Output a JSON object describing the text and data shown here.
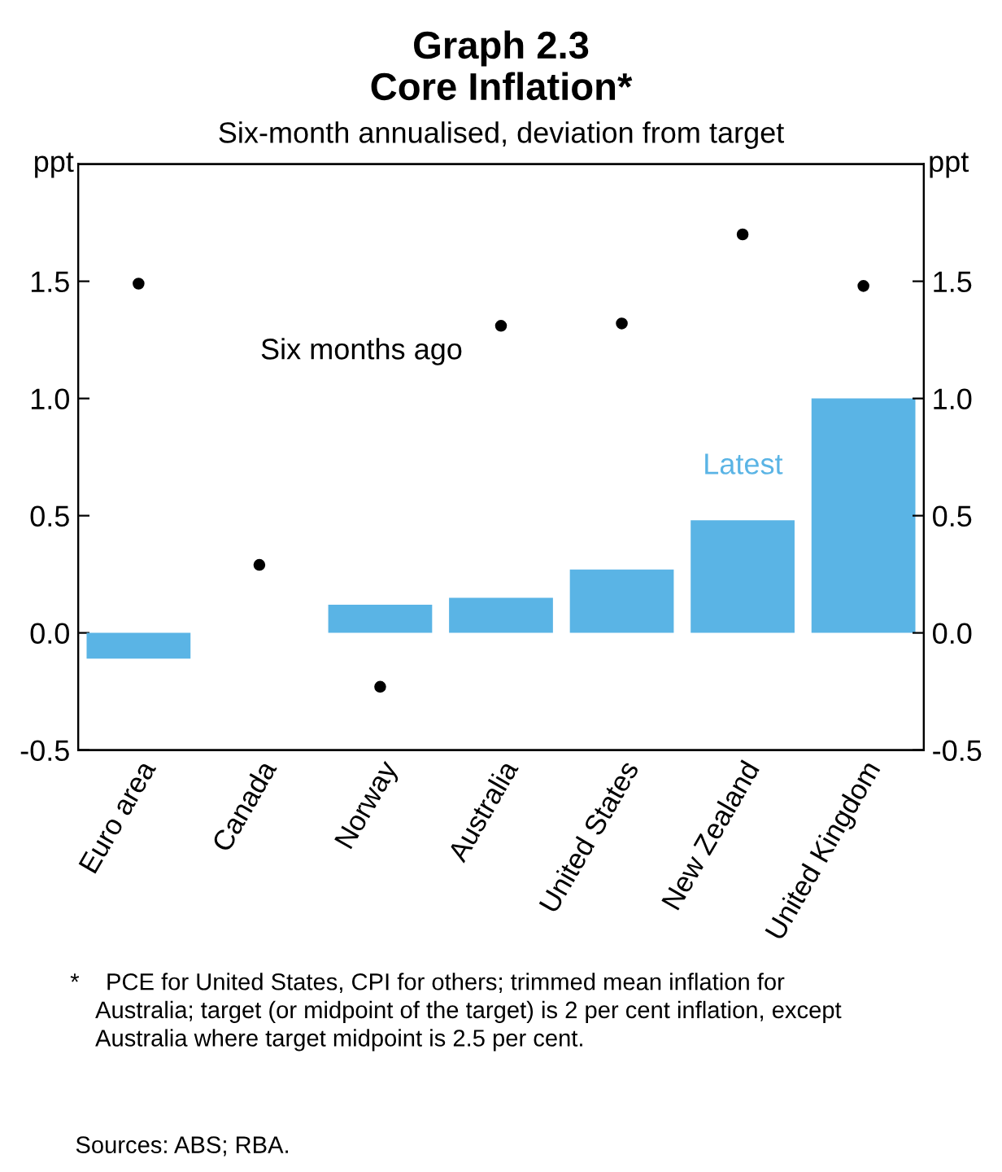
{
  "chart_data": {
    "type": "bar",
    "title": "Graph 2.3\nCore Inflation*",
    "subtitle": "Six-month annualised, deviation from target",
    "ylabel": "ppt",
    "y2label": "ppt",
    "categories": [
      "Euro area",
      "Canada",
      "Norway",
      "Australia",
      "United States",
      "New Zealand",
      "United Kingdom"
    ],
    "series": [
      {
        "color": "#5ab4e5",
        "values": [
          -0.11,
          0.0,
          0.12,
          0.15,
          0.27,
          0.48,
          1.0
        ]
      },
      {
        "type": "scatter",
        "color": "#000000",
        "marker": "circle",
        "values": [
          1.49,
          0.29,
          -0.23,
          1.31,
          1.32,
          1.7,
          1.48
        ]
      }
    ],
    "ylim": [
      -0.5,
      2.0
    ],
    "yticks": [
      {
        "value": -0.5,
        "label": "-0.5"
      },
      {
        "value": 0,
        "label": "0.0"
      },
      {
        "value": 0.5,
        "label": "0.5"
      },
      {
        "value": 1,
        "label": "1.0"
      },
      {
        "value": 1.5,
        "label": "1.5"
      }
    ],
    "y2lim": [
      -0.5,
      2.0
    ],
    "y2ticks": [
      {
        "value": -0.5,
        "label": "-0.5"
      },
      {
        "value": 0,
        "label": "0.0"
      },
      {
        "value": 0.5,
        "label": "0.5"
      },
      {
        "value": 1,
        "label": "1.0"
      },
      {
        "value": 1.5,
        "label": "1.5"
      }
    ],
    "grid": false,
    "annotations": [
      "Six months ago",
      "Latest",
      "*\tPCE for United States, CPI for others; trimmed mean inflation for\n\tAustralia; target (or midpoint of the target) is 2 per cent inflation, except\n\tAustralia where target midpoint is 2.5 per cent.",
      "Sources: ABS; RBA."
    ]
  }
}
